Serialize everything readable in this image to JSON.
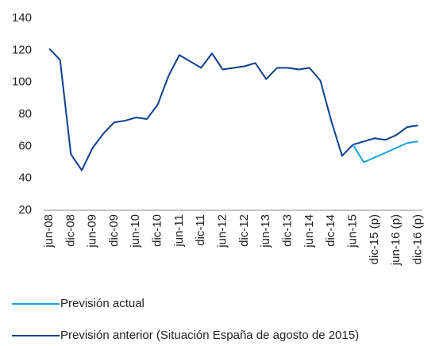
{
  "chart_data": {
    "type": "line",
    "categories": [
      "jun-08",
      null,
      "dic-08",
      null,
      "jun-09",
      null,
      "dic-09",
      null,
      "jun-10",
      null,
      "dic-10",
      null,
      "jun-11",
      null,
      "dic-11",
      null,
      "jun-12",
      null,
      "dic-12",
      null,
      "jun-13",
      null,
      "dic-13",
      null,
      "jun-14",
      null,
      "dic-14",
      null,
      "jun-15",
      null,
      "dic-15 (p)",
      null,
      "jun-16 (p)",
      null,
      "dic-16 (p)"
    ],
    "series": [
      {
        "name": "Previsión actual",
        "color": "#1ca3e0",
        "values": [
          null,
          null,
          null,
          null,
          null,
          null,
          null,
          null,
          null,
          null,
          null,
          null,
          null,
          null,
          null,
          null,
          null,
          null,
          null,
          null,
          null,
          null,
          null,
          null,
          null,
          null,
          null,
          null,
          61,
          50,
          53,
          56,
          59,
          62,
          63
        ]
      },
      {
        "name": "Previsión anterior (Situación España de agosto de 2015)",
        "color": "#0c3f8d",
        "values": [
          121,
          114,
          55,
          45,
          59,
          68,
          75,
          76,
          78,
          77,
          86,
          104,
          117,
          113,
          109,
          118,
          108,
          109,
          110,
          112,
          102,
          109,
          109,
          108,
          109,
          101,
          76,
          54,
          61,
          63,
          65,
          64,
          67,
          72,
          73
        ]
      }
    ],
    "ylim": [
      20,
      140
    ],
    "yticks": [
      20,
      40,
      60,
      80,
      100,
      120,
      140
    ],
    "grid": false,
    "legend": "bottom-left"
  }
}
